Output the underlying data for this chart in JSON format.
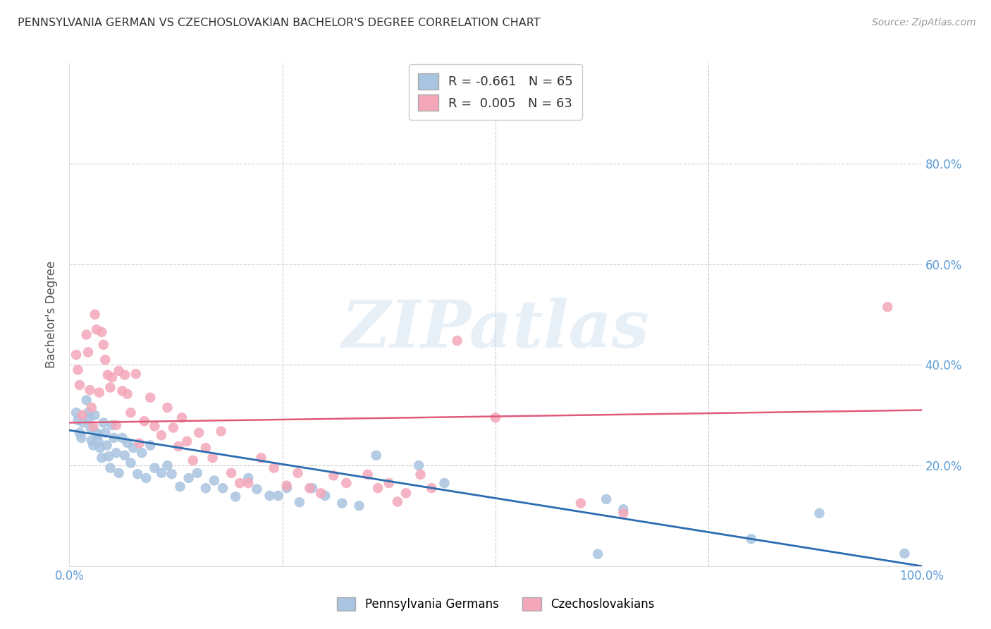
{
  "title": "PENNSYLVANIA GERMAN VS CZECHOSLOVAKIAN BACHELOR'S DEGREE CORRELATION CHART",
  "source": "Source: ZipAtlas.com",
  "ylabel": "Bachelor's Degree",
  "watermark_text": "ZIPatlas",
  "xlim": [
    0.0,
    1.0
  ],
  "ylim": [
    0.0,
    1.0
  ],
  "blue_color": "#a8c4e0",
  "pink_color": "#f4a7b9",
  "blue_line_color": "#2b6cb0",
  "pink_line_color": "#e05a7a",
  "legend_blue_label": "R = -0.661   N = 65",
  "legend_pink_label": "R =  0.005   N = 63",
  "legend_blue_series": "Pennsylvania Germans",
  "legend_pink_series": "Czechoslovakians",
  "blue_trendline_x": [
    0.0,
    1.0
  ],
  "blue_trendline_y": [
    0.27,
    0.0
  ],
  "pink_trendline_x": [
    0.0,
    1.0
  ],
  "pink_trendline_y": [
    0.285,
    0.31
  ],
  "blue_x": [
    0.008,
    0.01,
    0.012,
    0.014,
    0.016,
    0.02,
    0.022,
    0.023,
    0.025,
    0.026,
    0.028,
    0.03,
    0.032,
    0.033,
    0.034,
    0.036,
    0.038,
    0.04,
    0.042,
    0.044,
    0.046,
    0.048,
    0.05,
    0.052,
    0.055,
    0.058,
    0.062,
    0.065,
    0.068,
    0.072,
    0.075,
    0.08,
    0.085,
    0.09,
    0.095,
    0.1,
    0.108,
    0.115,
    0.12,
    0.13,
    0.14,
    0.15,
    0.16,
    0.17,
    0.18,
    0.195,
    0.21,
    0.22,
    0.235,
    0.245,
    0.255,
    0.27,
    0.285,
    0.3,
    0.32,
    0.34,
    0.36,
    0.41,
    0.44,
    0.62,
    0.63,
    0.65,
    0.8,
    0.88,
    0.98
  ],
  "blue_y": [
    0.305,
    0.29,
    0.265,
    0.255,
    0.285,
    0.33,
    0.305,
    0.295,
    0.275,
    0.25,
    0.24,
    0.3,
    0.265,
    0.26,
    0.248,
    0.235,
    0.215,
    0.285,
    0.265,
    0.24,
    0.218,
    0.195,
    0.28,
    0.255,
    0.225,
    0.185,
    0.255,
    0.22,
    0.245,
    0.205,
    0.235,
    0.183,
    0.225,
    0.175,
    0.24,
    0.195,
    0.185,
    0.2,
    0.183,
    0.158,
    0.175,
    0.185,
    0.155,
    0.17,
    0.155,
    0.138,
    0.175,
    0.153,
    0.14,
    0.14,
    0.155,
    0.127,
    0.155,
    0.14,
    0.125,
    0.12,
    0.22,
    0.2,
    0.165,
    0.024,
    0.133,
    0.113,
    0.054,
    0.105,
    0.025
  ],
  "pink_x": [
    0.008,
    0.01,
    0.012,
    0.015,
    0.02,
    0.022,
    0.024,
    0.026,
    0.028,
    0.03,
    0.032,
    0.035,
    0.038,
    0.04,
    0.042,
    0.045,
    0.048,
    0.05,
    0.055,
    0.058,
    0.062,
    0.065,
    0.068,
    0.072,
    0.078,
    0.082,
    0.088,
    0.095,
    0.1,
    0.108,
    0.115,
    0.122,
    0.128,
    0.132,
    0.138,
    0.145,
    0.152,
    0.16,
    0.168,
    0.178,
    0.19,
    0.2,
    0.21,
    0.225,
    0.24,
    0.255,
    0.268,
    0.282,
    0.295,
    0.31,
    0.325,
    0.35,
    0.362,
    0.375,
    0.385,
    0.395,
    0.412,
    0.425,
    0.455,
    0.5,
    0.6,
    0.65,
    0.96
  ],
  "pink_y": [
    0.42,
    0.39,
    0.36,
    0.3,
    0.46,
    0.425,
    0.35,
    0.315,
    0.278,
    0.5,
    0.47,
    0.345,
    0.465,
    0.44,
    0.41,
    0.38,
    0.355,
    0.375,
    0.28,
    0.388,
    0.348,
    0.38,
    0.342,
    0.305,
    0.382,
    0.244,
    0.288,
    0.335,
    0.278,
    0.26,
    0.315,
    0.275,
    0.238,
    0.295,
    0.248,
    0.21,
    0.265,
    0.235,
    0.215,
    0.268,
    0.185,
    0.165,
    0.165,
    0.215,
    0.195,
    0.16,
    0.185,
    0.155,
    0.145,
    0.18,
    0.165,
    0.182,
    0.155,
    0.165,
    0.128,
    0.145,
    0.182,
    0.155,
    0.448,
    0.295,
    0.125,
    0.105,
    0.515
  ],
  "grid_color": "#cccccc",
  "background_color": "#ffffff",
  "title_color": "#333333",
  "axis_label_color": "#5b9bd5",
  "spine_color": "#dddddd"
}
